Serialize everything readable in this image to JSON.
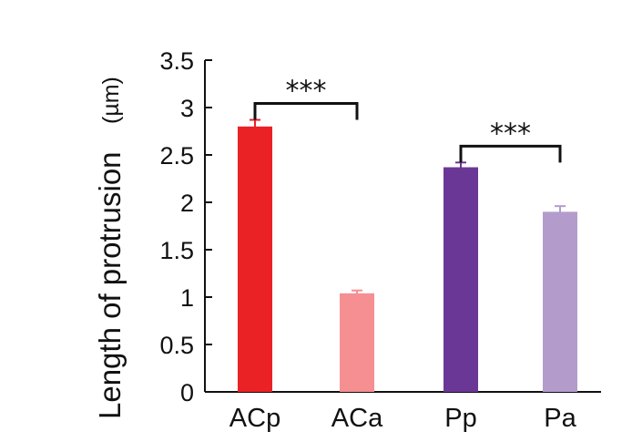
{
  "chart_data": {
    "type": "bar",
    "ylabel": "Length of protrusion",
    "ylabel_unit": "(µm)",
    "categories": [
      "ACp",
      "ACa",
      "Pp",
      "Pa"
    ],
    "values": [
      2.8,
      1.04,
      2.37,
      1.9
    ],
    "errors": [
      0.07,
      0.03,
      0.05,
      0.06
    ],
    "colors": [
      "#ea2226",
      "#f58f92",
      "#6b3797",
      "#b39ccc"
    ],
    "ylim": [
      0,
      3.5
    ],
    "yticks": [
      "0",
      "0.5",
      "1",
      "1.5",
      "2",
      "2.5",
      "3",
      "3.5"
    ],
    "significance": [
      {
        "from": 0,
        "to": 1,
        "label": "***"
      },
      {
        "from": 2,
        "to": 3,
        "label": "***"
      }
    ],
    "grid": false,
    "legend": false
  }
}
